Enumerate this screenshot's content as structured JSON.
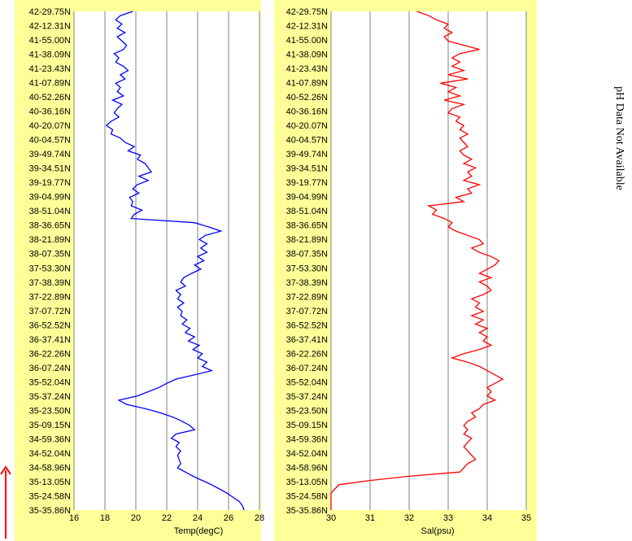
{
  "side_note": "pH Data Not Available",
  "colors": {
    "panel_bg": "#ffff99",
    "plot_bg": "#ffffff",
    "grid": "#808080",
    "temp": "#0000ff",
    "sal": "#ff0000",
    "arrow": "#ff0000"
  },
  "latitude_labels": [
    "42-29.75N",
    "42-12.31N",
    "41-55.00N",
    "41-38.09N",
    "41-23.43N",
    "41-07.89N",
    "40-52.26N",
    "40-36.16N",
    "40-20.07N",
    "40-04.57N",
    "39-49.74N",
    "39-34.51N",
    "39-19.77N",
    "39-04.99N",
    "38-51.04N",
    "38-36.65N",
    "38-21.89N",
    "38-07.35N",
    "37-53.30N",
    "37-38.39N",
    "37-22.89N",
    "37-07.72N",
    "36-52.52N",
    "36-37.41N",
    "36-22.26N",
    "36-07.24N",
    "35-52.04N",
    "35-37.24N",
    "35-23.50N",
    "35-09.15N",
    "34-59.36N",
    "34-52.04N",
    "34-58.96N",
    "35-13.05N",
    "35-24.58N",
    "35-35.86N"
  ],
  "chart_data": [
    {
      "type": "line",
      "xlabel": "Temp(degC)",
      "xlim": [
        16,
        28
      ],
      "x_ticks": [
        "16",
        "18",
        "20",
        "22",
        "24",
        "26",
        "28"
      ],
      "grid": true,
      "series": [
        {
          "color": "#0000ff",
          "values": [
            19.8,
            19.0,
            18.7,
            19.1,
            18.8,
            19.3,
            18.8,
            19.1,
            19.4,
            19.2,
            18.6,
            18.9,
            18.7,
            19.2,
            19.5,
            19.0,
            19.3,
            18.7,
            19.0,
            18.8,
            19.2,
            18.5,
            19.1,
            18.8,
            18.6,
            18.9,
            18.4,
            18.1,
            18.5,
            18.4,
            19.0,
            19.3,
            19.9,
            19.5,
            20.3,
            20.1,
            20.6,
            20.8,
            21.0,
            20.2,
            20.8,
            20.1,
            19.8,
            20.2,
            19.6,
            19.8,
            19.7,
            20.4,
            19.9,
            19.7,
            23.8,
            24.7,
            25.5,
            24.5,
            24.1,
            24.6,
            24.2,
            24.6,
            24.0,
            24.4,
            23.8,
            24.2,
            23.6,
            23.1,
            22.9,
            23.2,
            22.6,
            22.9,
            22.7,
            23.1,
            22.7,
            23.0,
            22.9,
            23.3,
            23.0,
            23.5,
            23.2,
            23.8,
            23.4,
            24.1,
            23.7,
            24.3,
            24.0,
            24.6,
            24.3,
            24.9,
            23.8,
            22.6,
            22.0,
            21.5,
            20.8,
            20.1,
            18.9,
            19.4,
            20.6,
            21.6,
            22.4,
            23.0,
            23.5,
            23.8,
            22.6,
            22.3,
            22.8,
            22.6,
            22.9,
            22.7,
            22.8,
            22.9,
            22.7,
            23.2,
            23.7,
            24.3,
            24.9,
            25.4,
            25.9,
            26.3,
            26.7,
            26.9,
            27.0
          ]
        }
      ]
    },
    {
      "type": "line",
      "xlabel": "Sal(psu)",
      "xlim": [
        30,
        35
      ],
      "x_ticks": [
        "30",
        "31",
        "32",
        "33",
        "34",
        "35"
      ],
      "grid": true,
      "series": [
        {
          "color": "#ff0000",
          "values": [
            32.2,
            32.5,
            32.7,
            33.0,
            32.9,
            33.1,
            32.9,
            33.0,
            33.4,
            33.8,
            33.3,
            33.1,
            33.3,
            33.1,
            33.4,
            33.0,
            33.5,
            32.8,
            33.2,
            33.0,
            33.3,
            32.9,
            33.4,
            33.1,
            33.0,
            33.3,
            33.2,
            33.4,
            33.3,
            33.5,
            33.3,
            33.4,
            33.5,
            33.3,
            33.4,
            33.6,
            33.4,
            33.7,
            33.5,
            33.6,
            33.4,
            33.8,
            33.5,
            33.6,
            33.2,
            33.4,
            32.5,
            32.7,
            32.6,
            32.9,
            33.1,
            33.0,
            33.2,
            33.5,
            33.8,
            33.9,
            33.6,
            33.8,
            34.1,
            34.3,
            34.2,
            34.0,
            33.8,
            34.1,
            33.8,
            34.0,
            34.1,
            33.9,
            33.6,
            33.8,
            33.7,
            33.9,
            33.6,
            33.9,
            33.7,
            34.0,
            33.8,
            34.0,
            33.9,
            34.1,
            33.8,
            33.4,
            33.1,
            33.5,
            33.8,
            34.0,
            34.2,
            34.4,
            34.2,
            34.0,
            34.1,
            34.0,
            34.2,
            33.9,
            33.8,
            33.6,
            33.7,
            33.5,
            33.4,
            33.5,
            33.4,
            33.6,
            33.5,
            33.4,
            33.5,
            33.6,
            33.7,
            33.5,
            33.4,
            33.3,
            32.0,
            31.0,
            30.2,
            30.1,
            30.0,
            30.0,
            30.0,
            30.0,
            30.0
          ]
        }
      ]
    }
  ]
}
